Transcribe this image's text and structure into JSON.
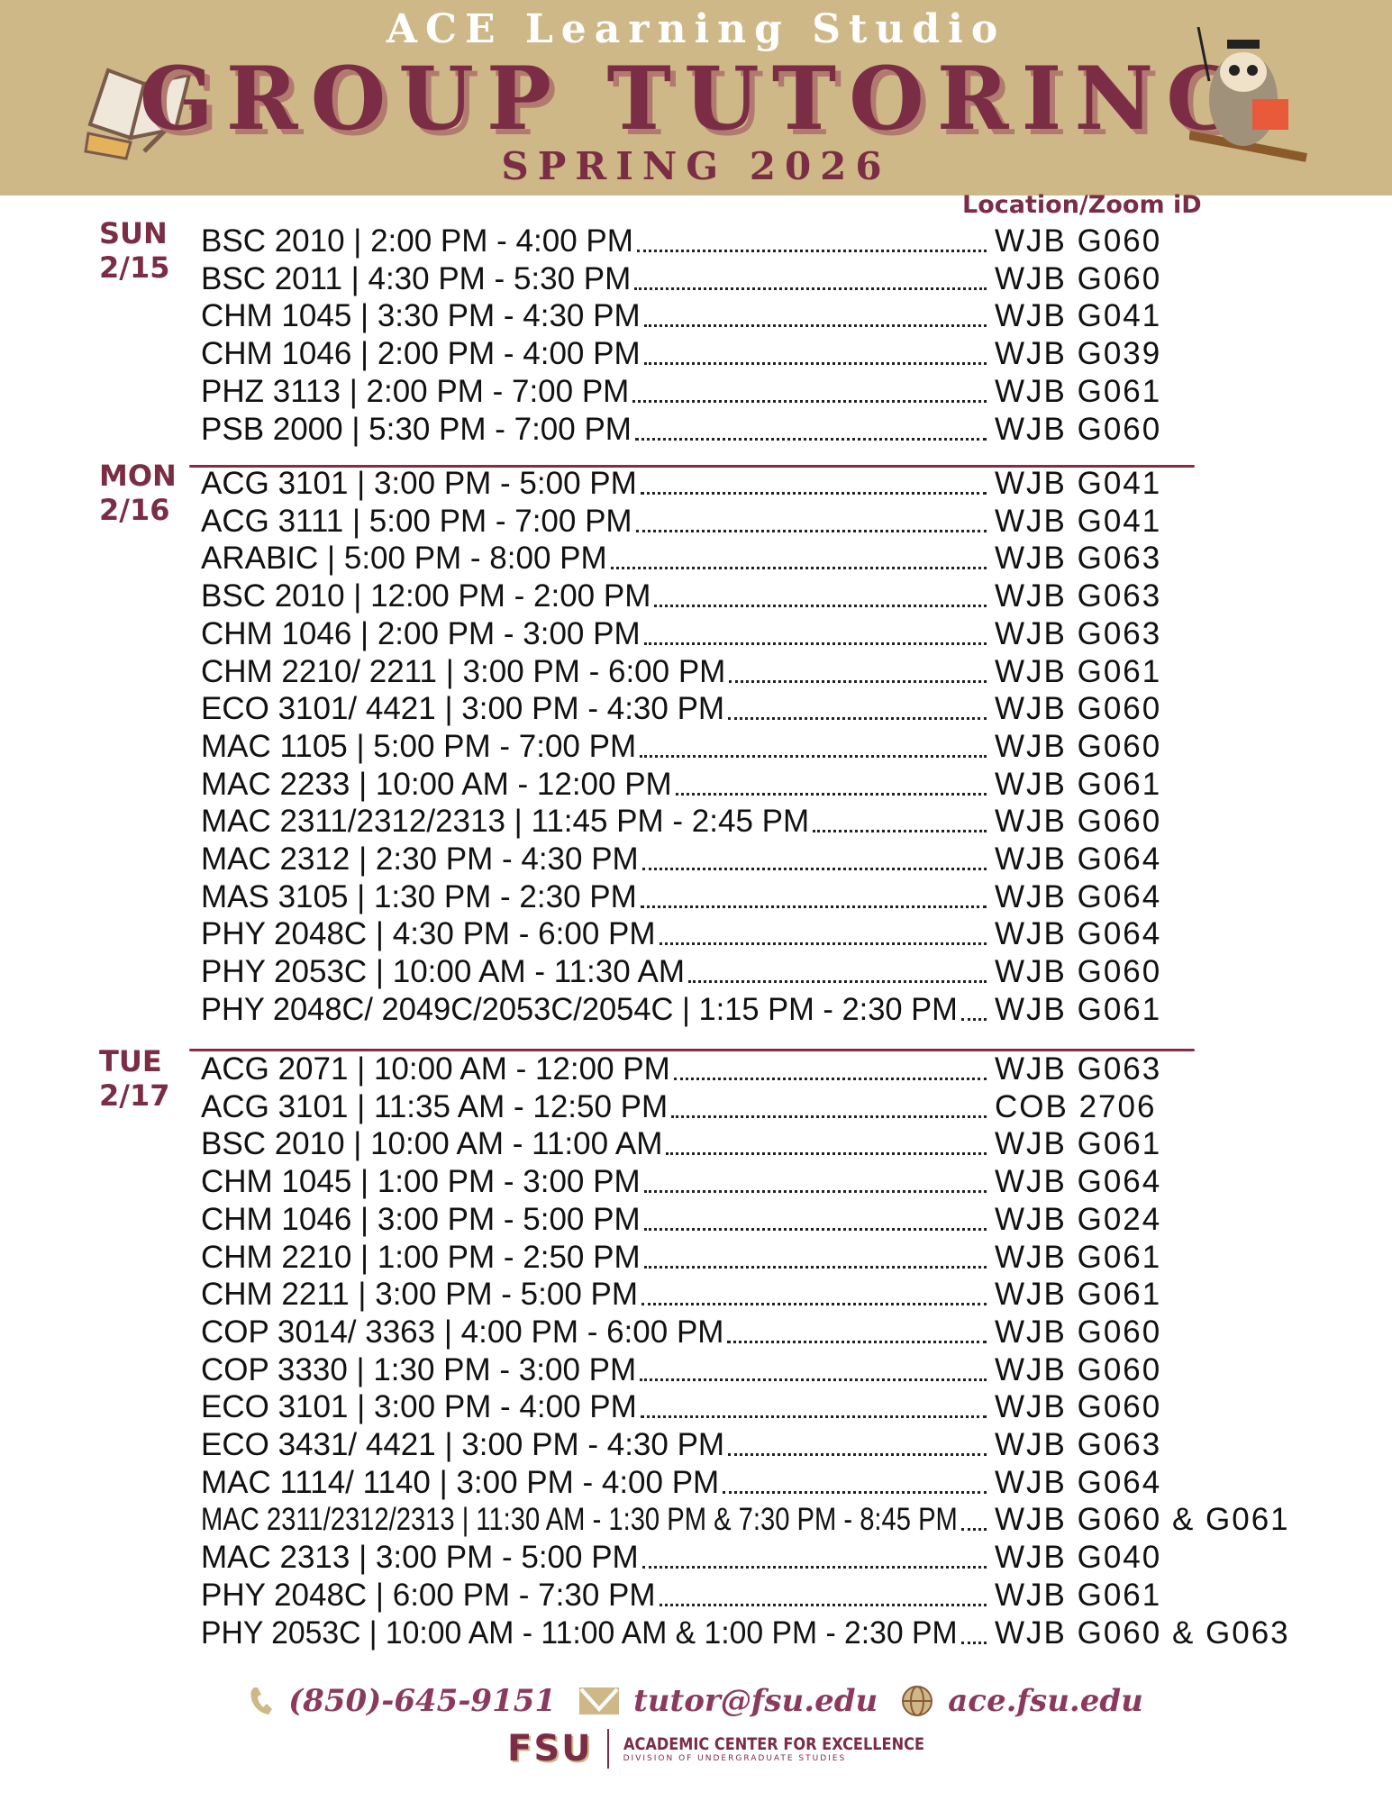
{
  "header": {
    "studio": "ACE Learning Studio",
    "title": "GROUP TUTORING",
    "term": "SPRING 2026"
  },
  "location_header": "Location/Zoom iD",
  "days": [
    {
      "day": "SUN",
      "date": "2/15",
      "sessions": [
        {
          "course": "BSC 2010 | 2:00 PM - 4:00 PM",
          "location": "WJB G060"
        },
        {
          "course": "BSC 2011 | 4:30 PM - 5:30 PM",
          "location": "WJB G060"
        },
        {
          "course": "CHM 1045 | 3:30 PM - 4:30 PM",
          "location": "WJB G041"
        },
        {
          "course": "CHM 1046 | 2:00 PM - 4:00 PM",
          "location": "WJB G039"
        },
        {
          "course": "PHZ 3113 | 2:00 PM - 7:00 PM",
          "location": "WJB G061"
        },
        {
          "course": "PSB 2000 | 5:30 PM - 7:00 PM",
          "location": "WJB G060"
        }
      ]
    },
    {
      "day": "MON",
      "date": "2/16",
      "sessions": [
        {
          "course": "ACG 3101 | 3:00 PM - 5:00 PM",
          "location": "WJB G041"
        },
        {
          "course": "ACG 3111 | 5:00 PM - 7:00 PM",
          "location": "WJB G041"
        },
        {
          "course": "ARABIC | 5:00 PM - 8:00 PM",
          "location": "WJB G063"
        },
        {
          "course": "BSC 2010 | 12:00 PM - 2:00 PM",
          "location": "WJB G063"
        },
        {
          "course": "CHM 1046 | 2:00 PM - 3:00 PM",
          "location": "WJB G063"
        },
        {
          "course": "CHM 2210/ 2211 | 3:00 PM - 6:00 PM",
          "location": "WJB G061"
        },
        {
          "course": "ECO 3101/ 4421 | 3:00 PM - 4:30 PM",
          "location": "WJB G060"
        },
        {
          "course": "MAC 1105 | 5:00 PM - 7:00 PM",
          "location": "WJB G060"
        },
        {
          "course": "MAC 2233 | 10:00 AM - 12:00 PM",
          "location": "WJB G061"
        },
        {
          "course": "MAC 2311/2312/2313 | 11:45 PM - 2:45 PM",
          "location": "WJB G060"
        },
        {
          "course": "MAC 2312 | 2:30 PM - 4:30 PM",
          "location": "WJB G064"
        },
        {
          "course": "MAS 3105 | 1:30 PM - 2:30 PM",
          "location": "WJB G064"
        },
        {
          "course": "PHY 2048C | 4:30 PM - 6:00 PM",
          "location": "WJB G064"
        },
        {
          "course": "PHY 2053C | 10:00 AM - 11:30 AM",
          "location": "WJB G060"
        },
        {
          "course": "PHY 2048C/ 2049C/2053C/2054C | 1:15 PM - 2:30 PM",
          "location": "WJB G061"
        }
      ]
    },
    {
      "day": "TUE",
      "date": "2/17",
      "sessions": [
        {
          "course": "ACG 2071 | 10:00 AM - 12:00 PM",
          "location": "WJB G063"
        },
        {
          "course": "ACG 3101 | 11:35 AM - 12:50 PM",
          "location": "COB 2706"
        },
        {
          "course": "BSC 2010 | 10:00 AM - 11:00 AM",
          "location": "WJB G061"
        },
        {
          "course": "CHM 1045 | 1:00 PM - 3:00 PM",
          "location": "WJB G064"
        },
        {
          "course": "CHM 1046 | 3:00 PM - 5:00 PM",
          "location": "WJB G024"
        },
        {
          "course": "CHM 2210 | 1:00 PM - 2:50 PM",
          "location": "WJB G061"
        },
        {
          "course": "CHM 2211 | 3:00 PM - 5:00 PM",
          "location": "WJB G061"
        },
        {
          "course": "COP 3014/ 3363 | 4:00 PM - 6:00 PM",
          "location": "WJB G060"
        },
        {
          "course": "COP 3330 | 1:30 PM - 3:00 PM",
          "location": "WJB G060"
        },
        {
          "course": "ECO 3101 | 3:00 PM - 4:00 PM",
          "location": "WJB G060"
        },
        {
          "course": "ECO 3431/ 4421 | 3:00 PM - 4:30 PM",
          "location": "WJB G063"
        },
        {
          "course": "MAC 1114/ 1140 | 3:00 PM - 4:00 PM",
          "location": "WJB G064"
        },
        {
          "course": "MAC 2311/2312/2313 | 11:30 AM - 1:30 PM & 7:30 PM - 8:45 PM",
          "location": "WJB G060 & G061"
        },
        {
          "course": "MAC 2313 | 3:00 PM - 5:00 PM",
          "location": "WJB G040"
        },
        {
          "course": "PHY 2048C | 6:00 PM - 7:30 PM",
          "location": "WJB G061"
        },
        {
          "course": "PHY 2053C | 10:00 AM - 11:00 AM & 1:00 PM - 2:30 PM",
          "location": "WJB G060 & G063"
        }
      ]
    }
  ],
  "footer": {
    "phone": "(850)-645-9151",
    "email": "tutor@fsu.edu",
    "website": "ace.fsu.edu",
    "logo_text": "FSU",
    "org": "ACADEMIC CENTER FOR EXCELLENCE",
    "division": "DIVISION OF UNDERGRADUATE STUDIES"
  },
  "colors": {
    "garnet": "#7b2d45",
    "gold": "#cfb887"
  }
}
